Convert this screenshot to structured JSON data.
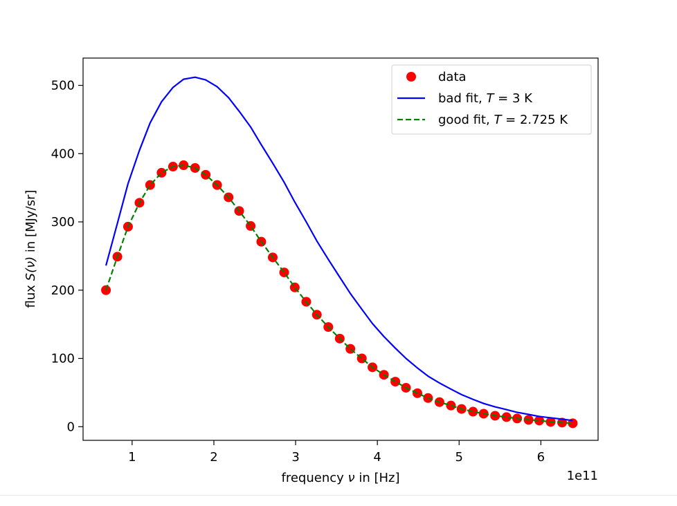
{
  "chart_data": {
    "type": "line",
    "xlabel_prefix": "frequency ",
    "xlabel_symbol": "ν",
    "xlabel_suffix": " in [Hz]",
    "ylabel_prefix": "flux ",
    "ylabel_symbol": "S(ν)",
    "ylabel_suffix": " in [MJy/sr]",
    "x_offset_text": "1e11",
    "xlim": [
      0.4,
      6.7
    ],
    "ylim": [
      -20,
      540
    ],
    "x_ticks": [
      1,
      2,
      3,
      4,
      5,
      6
    ],
    "y_ticks": [
      0,
      100,
      200,
      300,
      400,
      500
    ],
    "legend_position": "upper-right",
    "grid": false,
    "series": [
      {
        "name": "data",
        "kind": "scatter",
        "color": "#ff0000",
        "x": [
          0.68,
          0.82,
          0.95,
          1.09,
          1.22,
          1.36,
          1.5,
          1.63,
          1.77,
          1.9,
          2.04,
          2.18,
          2.31,
          2.45,
          2.58,
          2.72,
          2.86,
          2.99,
          3.13,
          3.26,
          3.4,
          3.54,
          3.67,
          3.81,
          3.94,
          4.08,
          4.22,
          4.35,
          4.49,
          4.62,
          4.76,
          4.9,
          5.03,
          5.17,
          5.3,
          5.44,
          5.58,
          5.71,
          5.85,
          5.98,
          6.12,
          6.26,
          6.39
        ],
        "y": [
          200,
          249,
          293,
          328,
          354,
          372,
          381,
          383,
          379,
          369,
          354,
          336,
          316,
          294,
          271,
          248,
          226,
          204,
          183,
          164,
          146,
          129,
          114,
          100,
          87,
          76,
          66,
          57,
          49,
          42,
          36,
          31,
          26,
          22,
          19,
          16,
          14,
          12,
          10,
          9,
          7,
          6,
          5
        ]
      },
      {
        "name_prefix": "bad fit, ",
        "name_var": "T",
        "name_suffix": " = 3 K",
        "kind": "line",
        "style": "solid",
        "color": "#0000ff",
        "x": [
          0.68,
          0.82,
          0.95,
          1.09,
          1.22,
          1.36,
          1.5,
          1.63,
          1.77,
          1.9,
          2.04,
          2.18,
          2.31,
          2.45,
          2.58,
          2.72,
          2.86,
          2.99,
          3.13,
          3.26,
          3.4,
          3.54,
          3.67,
          3.81,
          3.94,
          4.08,
          4.22,
          4.35,
          4.49,
          4.62,
          4.76,
          4.9,
          5.03,
          5.17,
          5.3,
          5.44,
          5.58,
          5.71,
          5.85,
          5.98,
          6.12,
          6.26,
          6.39
        ],
        "y": [
          236,
          298,
          356,
          405,
          445,
          476,
          497,
          509,
          512,
          508,
          498,
          482,
          462,
          439,
          413,
          386,
          358,
          329,
          300,
          272,
          245,
          219,
          195,
          172,
          151,
          132,
          115,
          100,
          86,
          74,
          64,
          55,
          47,
          40,
          34,
          29,
          25,
          21,
          18,
          15,
          13,
          11,
          9
        ]
      },
      {
        "name_prefix": "good fit, ",
        "name_var": "T",
        "name_suffix": " = 2.725 K",
        "kind": "line",
        "style": "dashed",
        "color": "#008000",
        "x": [
          0.68,
          0.82,
          0.95,
          1.09,
          1.22,
          1.36,
          1.5,
          1.63,
          1.77,
          1.9,
          2.04,
          2.18,
          2.31,
          2.45,
          2.58,
          2.72,
          2.86,
          2.99,
          3.13,
          3.26,
          3.4,
          3.54,
          3.67,
          3.81,
          3.94,
          4.08,
          4.22,
          4.35,
          4.49,
          4.62,
          4.76,
          4.9,
          5.03,
          5.17,
          5.3,
          5.44,
          5.58,
          5.71,
          5.85,
          5.98,
          6.12,
          6.26,
          6.39
        ],
        "y": [
          200,
          249,
          293,
          328,
          354,
          372,
          381,
          383,
          379,
          369,
          354,
          336,
          316,
          294,
          271,
          248,
          226,
          204,
          183,
          164,
          146,
          129,
          114,
          100,
          87,
          76,
          66,
          57,
          49,
          42,
          36,
          31,
          26,
          22,
          19,
          16,
          14,
          12,
          10,
          9,
          7,
          6,
          5
        ]
      }
    ]
  }
}
